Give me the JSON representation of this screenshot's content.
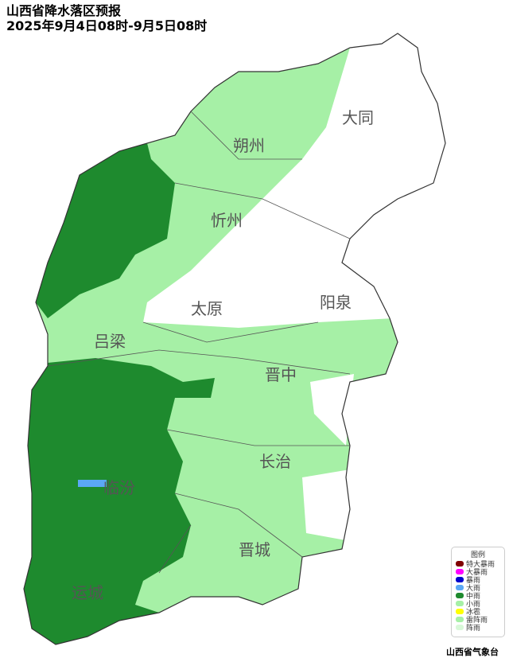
{
  "title": {
    "line1": "山西省降水落区预报",
    "line2": "2025年9月4日08时-9月5日08时"
  },
  "cities": [
    {
      "name": "大同"
    },
    {
      "name": "朔州"
    },
    {
      "name": "忻州"
    },
    {
      "name": "太原"
    },
    {
      "name": "阳泉"
    },
    {
      "name": "吕梁"
    },
    {
      "name": "晋中"
    },
    {
      "name": "长治"
    },
    {
      "name": "临汾"
    },
    {
      "name": "晋城"
    },
    {
      "name": "运城"
    }
  ],
  "legend": {
    "title": "图例",
    "items": [
      {
        "label": "特大暴雨",
        "color": "#7f0000"
      },
      {
        "label": "大暴雨",
        "color": "#ff00ff"
      },
      {
        "label": "暴雨",
        "color": "#0000cc"
      },
      {
        "label": "大雨",
        "color": "#5ba8f5"
      },
      {
        "label": "中雨",
        "color": "#1e8a2e"
      },
      {
        "label": "小雨",
        "color": "#a6f0a6"
      },
      {
        "label": "冰雹",
        "color": "#ffff00"
      },
      {
        "label": "雷阵雨",
        "color": "#a6f0a6"
      },
      {
        "label": "阵雨",
        "color": "#d8f8d8"
      }
    ]
  },
  "credit": "山西省气象台"
}
